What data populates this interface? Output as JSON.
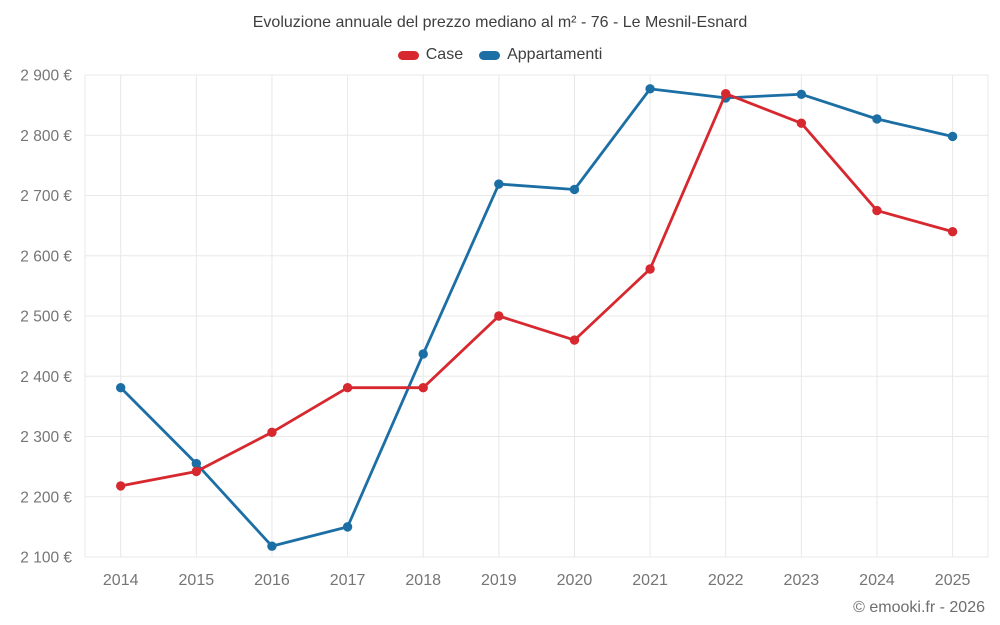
{
  "page": {
    "footer": "© emooki.fr - 2026"
  },
  "colors": {
    "case_red": "#d7282f",
    "apartments_blue": "#1c6fa4",
    "gridline": "#e8e8e8",
    "tick_text": "#757575",
    "title_text": "#3e3e3e",
    "footer_text": "#6e6e6e"
  },
  "chart_data": {
    "type": "line",
    "title": "Evoluzione annuale del prezzo mediano al m² - 76 - Le Mesnil-Esnard",
    "xlabel": "",
    "ylabel": "",
    "categories": [
      "2014",
      "2015",
      "2016",
      "2017",
      "2018",
      "2019",
      "2020",
      "2021",
      "2022",
      "2023",
      "2024",
      "2025"
    ],
    "series": [
      {
        "name": "Case",
        "color": "#d7282f",
        "values": [
          2218,
          2242,
          2307,
          2381,
          2381,
          2500,
          2460,
          2578,
          2869,
          2820,
          2675,
          2640
        ]
      },
      {
        "name": "Appartamenti",
        "color": "#1c6fa4",
        "values": [
          2381,
          2255,
          2118,
          2150,
          2437,
          2719,
          2710,
          2877,
          2862,
          2868,
          2827,
          2798
        ]
      }
    ],
    "ylim": [
      2100,
      2900
    ],
    "y_ticks": [
      2100,
      2200,
      2300,
      2400,
      2500,
      2600,
      2700,
      2800,
      2900
    ],
    "y_tick_labels": [
      "2 100 €",
      "2 200 €",
      "2 300 €",
      "2 400 €",
      "2 500 €",
      "2 600 €",
      "2 700 €",
      "2 800 €",
      "2 900 €"
    ],
    "grid": true,
    "legend_position": "top",
    "marker": "circle",
    "unit": "€"
  }
}
